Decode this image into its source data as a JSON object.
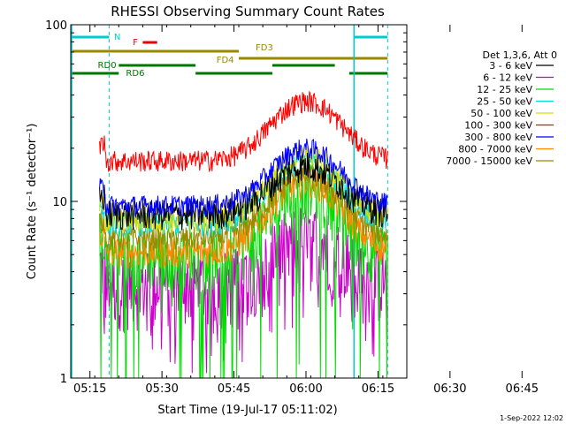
{
  "chart_data": {
    "type": "line",
    "title": "RHESSI Observing Summary Count Rates",
    "xlabel": "Start Time (19-Jul-17 05:11:02)",
    "ylabel": "Count Rate (s⁻¹ detector⁻¹)",
    "y_scale": "log",
    "ylim": [
      1,
      100
    ],
    "xlim_minutes": [
      0,
      70
    ],
    "y_tick_labels": [
      "1",
      "10",
      "100"
    ],
    "x_tick_labels": [
      "05:15",
      "05:30",
      "05:45",
      "06:00",
      "06:15",
      "06:30",
      "06:45"
    ],
    "legend_header": "Det 1,3,6, Att 0",
    "legend_position": "right",
    "data_start_minute": 6.0,
    "data_end_minute": 66.0,
    "series": [
      {
        "name": "3 - 6 keV",
        "color": "#000000",
        "base": 8.5,
        "peak": 16.0,
        "noise": 0.05,
        "drop": 0,
        "drop_floor": 0
      },
      {
        "name": "6 - 12 keV",
        "color": "#cc00cc",
        "base": 3.5,
        "peak": 6.5,
        "noise": 0.12,
        "drop": 0.22,
        "drop_floor": 0.5
      },
      {
        "name": "12 - 25 keV",
        "color": "#00dd00",
        "base": 5.0,
        "peak": 12.0,
        "noise": 0.1,
        "drop": 0.12,
        "drop_floor": 1.2
      },
      {
        "name": "25 - 50 keV",
        "color": "#00dddd",
        "base": 7.5,
        "peak": 17.0,
        "noise": 0.04,
        "drop": 0,
        "drop_floor": 0
      },
      {
        "name": "50 - 100 keV",
        "color": "#dddd00",
        "base": 7.8,
        "peak": 18.0,
        "noise": 0.04,
        "drop": 0,
        "drop_floor": 0
      },
      {
        "name": "100 - 300 keV",
        "color": "#ff0000",
        "base": 17.0,
        "peak": 37.0,
        "noise": 0.035,
        "drop": 0,
        "drop_floor": 0
      },
      {
        "name": "300 - 800 keV",
        "color": "#0000ff",
        "base": 9.5,
        "peak": 20.0,
        "noise": 0.035,
        "drop": 0,
        "drop_floor": 0
      },
      {
        "name": "800 - 7000 keV",
        "color": "#ff8800",
        "base": 5.2,
        "peak": 13.0,
        "noise": 0.05,
        "drop": 0,
        "drop_floor": 0
      },
      {
        "name": "7000 - 15000 keV",
        "color": "#998800",
        "base": 6.2,
        "peak": 14.0,
        "noise": 0.04,
        "drop": 0,
        "drop_floor": 0
      }
    ],
    "peak_minute": 49.0,
    "peak_width_minutes": 9.0,
    "night_bars": [
      [
        0,
        8
      ],
      [
        59,
        66
      ]
    ],
    "night_dashed_at": [
      8,
      66
    ],
    "flags": [
      {
        "label": "N",
        "color": "#00cccc",
        "intervals": [
          [
            0,
            8
          ],
          [
            59,
            66
          ]
        ]
      },
      {
        "label": "F",
        "color": "#ee0000",
        "intervals": [
          [
            15,
            18
          ]
        ]
      },
      {
        "label": "FD3",
        "color": "#998800",
        "intervals": [
          [
            0,
            35
          ]
        ]
      },
      {
        "label": "FD4",
        "color": "#998800",
        "intervals": [
          [
            35,
            66
          ]
        ]
      },
      {
        "label": "RD0",
        "color": "#007700",
        "intervals": [
          [
            10,
            26
          ],
          [
            42,
            55
          ]
        ]
      },
      {
        "label": "RD6",
        "color": "#007700",
        "intervals": [
          [
            0,
            10
          ],
          [
            26,
            42
          ],
          [
            58,
            66
          ]
        ]
      }
    ]
  },
  "timestamp": "1-Sep-2022 12:02"
}
